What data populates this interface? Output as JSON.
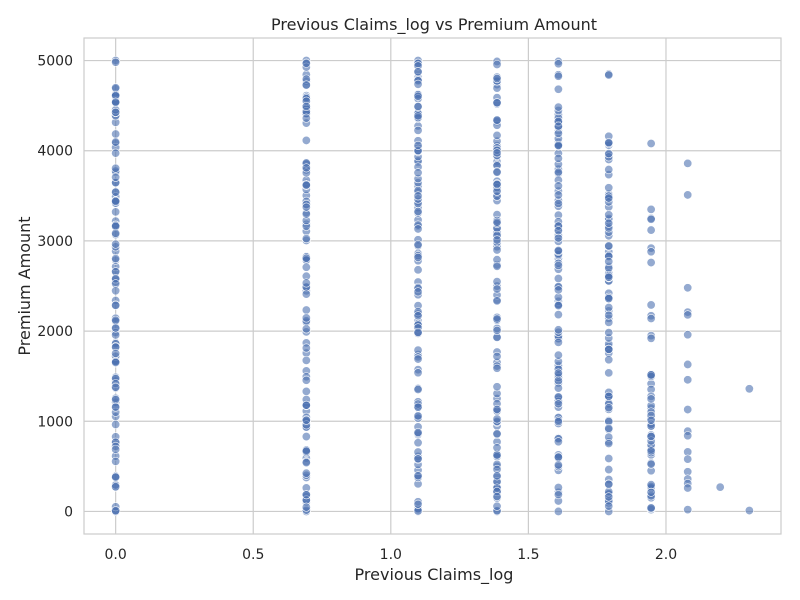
{
  "chart_data": {
    "type": "scatter",
    "title": "Previous Claims_log vs Premium Amount",
    "xlabel": "Previous Claims_log",
    "ylabel": "Premium Amount",
    "xlim": [
      -0.115,
      2.418
    ],
    "ylim": [
      -250,
      5250
    ],
    "xticks": [
      0.0,
      0.5,
      1.0,
      1.5,
      2.0
    ],
    "xtick_labels": [
      "0.0",
      "0.5",
      "1.0",
      "1.5",
      "2.0"
    ],
    "yticks": [
      0,
      1000,
      2000,
      3000,
      4000,
      5000
    ],
    "ytick_labels": [
      "0",
      "1000",
      "2000",
      "3000",
      "4000",
      "5000"
    ],
    "grid": true,
    "point_color": "#4c72b0",
    "columns": [
      {
        "x": 0.0,
        "y_min": 0,
        "y_max": 5000,
        "dense": true
      },
      {
        "x": 0.693,
        "y_min": 0,
        "y_max": 5000,
        "dense": true
      },
      {
        "x": 1.099,
        "y_min": 0,
        "y_max": 5000,
        "dense": true
      },
      {
        "x": 1.386,
        "y_min": 0,
        "y_max": 4990,
        "dense": true
      },
      {
        "x": 1.609,
        "y_min": 0,
        "y_max": 4990,
        "dense": true
      },
      {
        "x": 1.792,
        "y_min": 0,
        "y_max": 4160,
        "dense": true
      },
      {
        "x": 1.946,
        "y_min": 20,
        "y_max": 1520,
        "dense": true
      }
    ],
    "points": [
      {
        "x": 1.792,
        "y": 4850
      },
      {
        "x": 1.792,
        "y": 4840
      },
      {
        "x": 1.946,
        "y": 4080
      },
      {
        "x": 1.946,
        "y": 3350
      },
      {
        "x": 1.946,
        "y": 3250
      },
      {
        "x": 1.946,
        "y": 3240
      },
      {
        "x": 1.946,
        "y": 3120
      },
      {
        "x": 1.946,
        "y": 2920
      },
      {
        "x": 1.946,
        "y": 2880
      },
      {
        "x": 1.946,
        "y": 2760
      },
      {
        "x": 1.946,
        "y": 2290
      },
      {
        "x": 1.946,
        "y": 2170
      },
      {
        "x": 1.946,
        "y": 2140
      },
      {
        "x": 1.946,
        "y": 1950
      },
      {
        "x": 1.946,
        "y": 1920
      },
      {
        "x": 2.079,
        "y": 3860
      },
      {
        "x": 2.079,
        "y": 3510
      },
      {
        "x": 2.079,
        "y": 2480
      },
      {
        "x": 2.079,
        "y": 2210
      },
      {
        "x": 2.079,
        "y": 2180
      },
      {
        "x": 2.079,
        "y": 1960
      },
      {
        "x": 2.079,
        "y": 1630
      },
      {
        "x": 2.079,
        "y": 1460
      },
      {
        "x": 2.079,
        "y": 1130
      },
      {
        "x": 2.079,
        "y": 890
      },
      {
        "x": 2.079,
        "y": 840
      },
      {
        "x": 2.079,
        "y": 660
      },
      {
        "x": 2.079,
        "y": 580
      },
      {
        "x": 2.079,
        "y": 440
      },
      {
        "x": 2.079,
        "y": 360
      },
      {
        "x": 2.079,
        "y": 310
      },
      {
        "x": 2.079,
        "y": 260
      },
      {
        "x": 2.079,
        "y": 20
      },
      {
        "x": 2.197,
        "y": 270
      },
      {
        "x": 2.303,
        "y": 1360
      },
      {
        "x": 2.303,
        "y": 10
      }
    ]
  }
}
